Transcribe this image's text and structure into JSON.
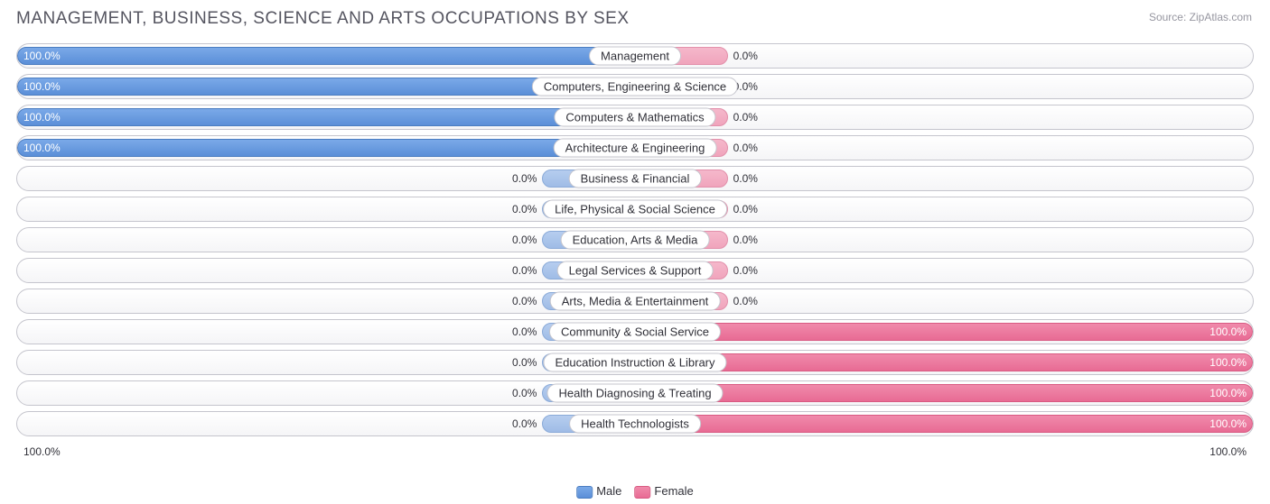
{
  "title": "MANAGEMENT, BUSINESS, SCIENCE AND ARTS OCCUPATIONS BY SEX",
  "source": "Source: ZipAtlas.com",
  "axis": {
    "left": "100.0%",
    "right": "100.0%"
  },
  "legend": {
    "male": "Male",
    "female": "Female"
  },
  "colors": {
    "male_full": "#5b8fd8",
    "male_faded": "#9fbce6",
    "female_full": "#e86b94",
    "female_faded": "#f0a4bc",
    "row_border": "#c5c5cd",
    "text": "#303038",
    "title_text": "#555560",
    "background": "#ffffff"
  },
  "placeholder_bar_pct": 15,
  "rows": [
    {
      "category": "Management",
      "male_pct": 100.0,
      "female_pct": 0.0,
      "male_label": "100.0%",
      "female_label": "0.0%"
    },
    {
      "category": "Computers, Engineering & Science",
      "male_pct": 100.0,
      "female_pct": 0.0,
      "male_label": "100.0%",
      "female_label": "0.0%"
    },
    {
      "category": "Computers & Mathematics",
      "male_pct": 100.0,
      "female_pct": 0.0,
      "male_label": "100.0%",
      "female_label": "0.0%"
    },
    {
      "category": "Architecture & Engineering",
      "male_pct": 100.0,
      "female_pct": 0.0,
      "male_label": "100.0%",
      "female_label": "0.0%"
    },
    {
      "category": "Business & Financial",
      "male_pct": 0.0,
      "female_pct": 0.0,
      "male_label": "0.0%",
      "female_label": "0.0%"
    },
    {
      "category": "Life, Physical & Social Science",
      "male_pct": 0.0,
      "female_pct": 0.0,
      "male_label": "0.0%",
      "female_label": "0.0%"
    },
    {
      "category": "Education, Arts & Media",
      "male_pct": 0.0,
      "female_pct": 0.0,
      "male_label": "0.0%",
      "female_label": "0.0%"
    },
    {
      "category": "Legal Services & Support",
      "male_pct": 0.0,
      "female_pct": 0.0,
      "male_label": "0.0%",
      "female_label": "0.0%"
    },
    {
      "category": "Arts, Media & Entertainment",
      "male_pct": 0.0,
      "female_pct": 0.0,
      "male_label": "0.0%",
      "female_label": "0.0%"
    },
    {
      "category": "Community & Social Service",
      "male_pct": 0.0,
      "female_pct": 100.0,
      "male_label": "0.0%",
      "female_label": "100.0%"
    },
    {
      "category": "Education Instruction & Library",
      "male_pct": 0.0,
      "female_pct": 100.0,
      "male_label": "0.0%",
      "female_label": "100.0%"
    },
    {
      "category": "Health Diagnosing & Treating",
      "male_pct": 0.0,
      "female_pct": 100.0,
      "male_label": "0.0%",
      "female_label": "100.0%"
    },
    {
      "category": "Health Technologists",
      "male_pct": 0.0,
      "female_pct": 100.0,
      "male_label": "0.0%",
      "female_label": "100.0%"
    }
  ]
}
